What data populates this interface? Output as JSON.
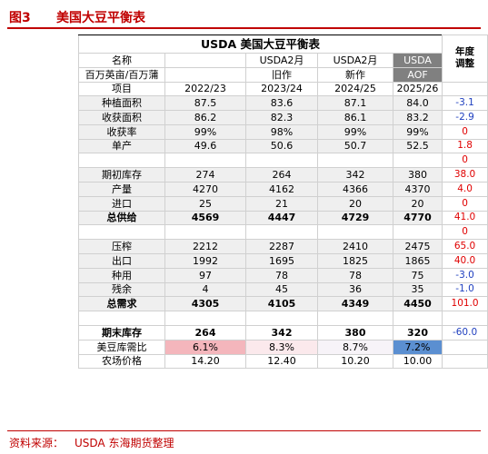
{
  "figure": {
    "number": "图3",
    "title": "美国大豆平衡表"
  },
  "table": {
    "title": "USDA 美国大豆平衡表",
    "header": {
      "name_label": "名称",
      "unit_label": "百万英亩/百万蒲",
      "item_label": "项目",
      "col1_top": "",
      "col1_sub": "",
      "col1_year": "2022/23",
      "col2_top": "USDA2月",
      "col2_sub": "旧作",
      "col2_year": "2023/24",
      "col3_top": "USDA2月",
      "col3_sub": "新作",
      "col3_year": "2024/25",
      "col4_top": "USDA",
      "col4_sub": "AOF",
      "col4_year": "2025/26",
      "adj_line1": "年度",
      "adj_line2": "调整"
    },
    "rows": [
      {
        "label": "种植面积",
        "v1": "87.5",
        "v2": "83.6",
        "v3": "87.1",
        "v4": "84.0",
        "adj": "-3.1"
      },
      {
        "label": "收获面积",
        "v1": "86.2",
        "v2": "82.3",
        "v3": "86.1",
        "v4": "83.2",
        "adj": "-2.9"
      },
      {
        "label": "收获率",
        "v1": "99%",
        "v2": "98%",
        "v3": "99%",
        "v4": "99%",
        "adj": "0"
      },
      {
        "label": "单产",
        "v1": "49.6",
        "v2": "50.6",
        "v3": "50.7",
        "v4": "52.5",
        "adj": "1.8"
      },
      {
        "label": "",
        "v1": "",
        "v2": "",
        "v3": "",
        "v4": "",
        "adj": "0"
      },
      {
        "label": "期初库存",
        "v1": "274",
        "v2": "264",
        "v3": "342",
        "v4": "380",
        "adj": "38.0"
      },
      {
        "label": "产量",
        "v1": "4270",
        "v2": "4162",
        "v3": "4366",
        "v4": "4370",
        "adj": "4.0"
      },
      {
        "label": "进口",
        "v1": "25",
        "v2": "21",
        "v3": "20",
        "v4": "20",
        "adj": "0"
      },
      {
        "label": "总供给",
        "v1": "4569",
        "v2": "4447",
        "v3": "4729",
        "v4": "4770",
        "adj": "41.0"
      },
      {
        "label": "",
        "v1": "",
        "v2": "",
        "v3": "",
        "v4": "",
        "adj": "0"
      },
      {
        "label": "压榨",
        "v1": "2212",
        "v2": "2287",
        "v3": "2410",
        "v4": "2475",
        "adj": "65.0"
      },
      {
        "label": "出口",
        "v1": "1992",
        "v2": "1695",
        "v3": "1825",
        "v4": "1865",
        "adj": "40.0"
      },
      {
        "label": "种用",
        "v1": "97",
        "v2": "78",
        "v3": "78",
        "v4": "75",
        "adj": "-3.0"
      },
      {
        "label": "残余",
        "v1": "4",
        "v2": "45",
        "v3": "36",
        "v4": "35",
        "adj": "-1.0"
      },
      {
        "label": "总需求",
        "v1": "4305",
        "v2": "4105",
        "v3": "4349",
        "v4": "4450",
        "adj": "101.0"
      },
      {
        "label": "",
        "v1": "",
        "v2": "",
        "v3": "",
        "v4": "",
        "adj": ""
      },
      {
        "label": "期末库存",
        "v1": "264",
        "v2": "342",
        "v3": "380",
        "v4": "320",
        "adj": "-60.0"
      },
      {
        "label": "美豆库需比",
        "v1": "6.1%",
        "v2": "8.3%",
        "v3": "8.7%",
        "v4": "7.2%",
        "adj": ""
      },
      {
        "label": "农场价格",
        "v1": "14.20",
        "v2": "12.40",
        "v3": "10.20",
        "v4": "10.00",
        "adj": ""
      }
    ],
    "colors": {
      "ratio_v1": "#f4b6bc",
      "ratio_v2": "#fbe9ec",
      "ratio_v3": "#f7f3f8",
      "ratio_v4": "#5b8fd1",
      "aof_header": "#808080",
      "accent_red": "#c00000",
      "positive": "#e00000",
      "negative": "#1f3fbf"
    }
  },
  "footer": {
    "source_label": "资料来源：",
    "source_text": "USDA  东海期货整理"
  }
}
